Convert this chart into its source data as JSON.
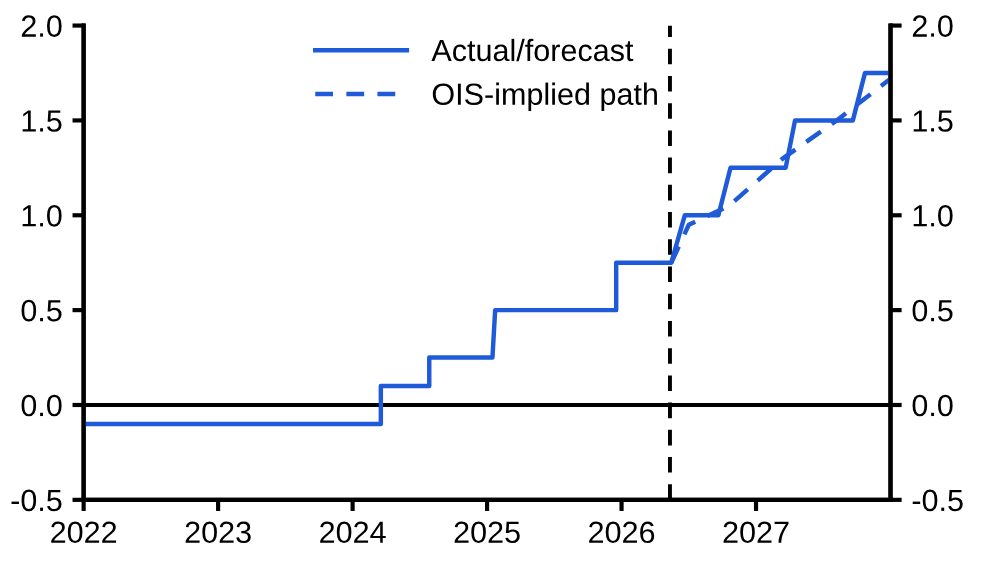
{
  "chart_data": {
    "type": "line",
    "series": [
      {
        "name": "Actual/forecast",
        "color": "#1f5ad8",
        "line_style": "solid",
        "x": [
          2022.0,
          2024.21,
          2024.21,
          2024.57,
          2024.57,
          2025.04,
          2025.06,
          2025.96,
          2025.96,
          2026.37,
          2026.47,
          2026.72,
          2026.81,
          2027.22,
          2027.29,
          2027.72,
          2027.81,
          2028.0
        ],
        "values": [
          -0.1,
          -0.1,
          0.1,
          0.1,
          0.25,
          0.25,
          0.5,
          0.5,
          0.75,
          0.75,
          1.0,
          1.0,
          1.25,
          1.25,
          1.5,
          1.5,
          1.75,
          1.75
        ]
      },
      {
        "name": "OIS-implied path",
        "color": "#1f5ad8",
        "line_style": "dashed",
        "x": [
          2026.37,
          2026.5,
          2026.8,
          2027.2,
          2027.6,
          2028.0
        ],
        "values": [
          0.75,
          0.95,
          1.05,
          1.3,
          1.5,
          1.72
        ]
      }
    ],
    "xlim": [
      2022,
      2028
    ],
    "xticks": [
      2022,
      2023,
      2024,
      2025,
      2026,
      2027
    ],
    "ylim": [
      -0.5,
      2.0
    ],
    "yticks": [
      {
        "value": -0.5,
        "label": "-0.5"
      },
      {
        "value": 0,
        "label": "0.0"
      },
      {
        "value": 0.5,
        "label": "0.5"
      },
      {
        "value": 1.0,
        "label": "1.0"
      },
      {
        "value": 1.5,
        "label": "1.5"
      },
      {
        "value": 2.0,
        "label": "2.0"
      }
    ],
    "y2lim": [
      -0.5,
      2.0
    ],
    "y2ticks": [
      {
        "value": -0.5,
        "label": "-0.5"
      },
      {
        "value": 0,
        "label": "0.0"
      },
      {
        "value": 0.5,
        "label": "0.5"
      },
      {
        "value": 1.0,
        "label": "1.0"
      },
      {
        "value": 1.5,
        "label": "1.5"
      },
      {
        "value": 2.0,
        "label": "2.0"
      }
    ],
    "ref_lines": [
      {
        "axis": "y",
        "value": 0,
        "color": "#000000",
        "line_style": "solid"
      },
      {
        "axis": "x",
        "value": 2026.36,
        "color": "#000000",
        "line_style": "dashed"
      }
    ],
    "legend": "top",
    "grid": false
  }
}
